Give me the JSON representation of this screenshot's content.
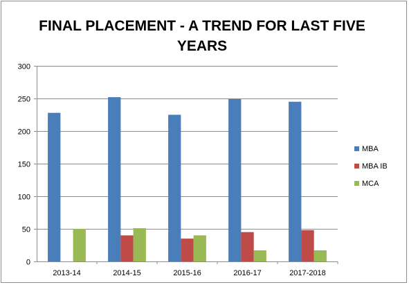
{
  "chart_data": {
    "type": "bar",
    "title": "FINAL PLACEMENT - A TREND FOR LAST FIVE YEARS",
    "xlabel": "",
    "ylabel": "",
    "categories": [
      "2013-14",
      "2014-15",
      "2015-16",
      "2016-17",
      "2017-2018"
    ],
    "series": [
      {
        "name": "MBA",
        "color": "#4a7ebb",
        "values": [
          228,
          252,
          225,
          249,
          245
        ]
      },
      {
        "name": "MBA IB",
        "color": "#be4b48",
        "values": [
          0,
          40,
          35,
          45,
          48
        ]
      },
      {
        "name": "MCA",
        "color": "#98b954",
        "values": [
          50,
          51,
          40,
          17,
          17
        ]
      }
    ],
    "ylim": [
      0,
      300
    ],
    "yticks": [
      0,
      50,
      100,
      150,
      200,
      250,
      300
    ],
    "grid": true,
    "legend_position": "right"
  }
}
